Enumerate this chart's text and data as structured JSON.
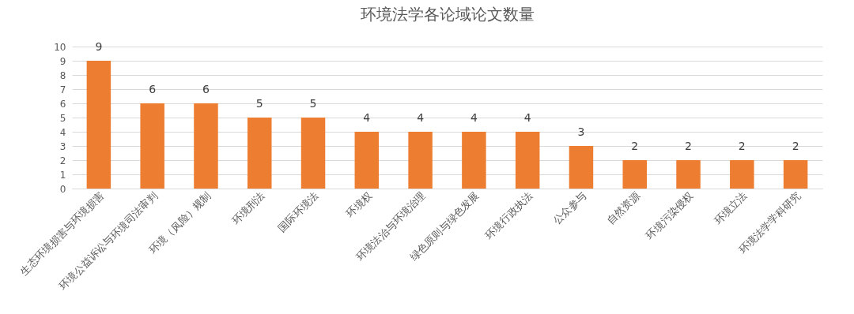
{
  "chart_data": {
    "type": "bar",
    "title": "环境法学各论域论文数量",
    "categories": [
      "生态环境损害与环境损害",
      "环境公益诉讼与环境司法审判",
      "环境（风险）规制",
      "环境刑法",
      "国际环境法",
      "环境权",
      "环境法治与环境治理",
      "绿色原则与绿色发展",
      "环境行政执法",
      "公众参与",
      "自然资源",
      "环境污染侵权",
      "环境立法",
      "环境法学学科研究"
    ],
    "values": [
      9,
      6,
      6,
      5,
      5,
      4,
      4,
      4,
      4,
      3,
      2,
      2,
      2,
      2
    ],
    "color": "#ed7d31",
    "ylim": [
      0,
      10
    ],
    "yticks": [
      0,
      1,
      2,
      3,
      4,
      5,
      6,
      7,
      8,
      9,
      10
    ],
    "grid": "y",
    "data_labels": true
  }
}
